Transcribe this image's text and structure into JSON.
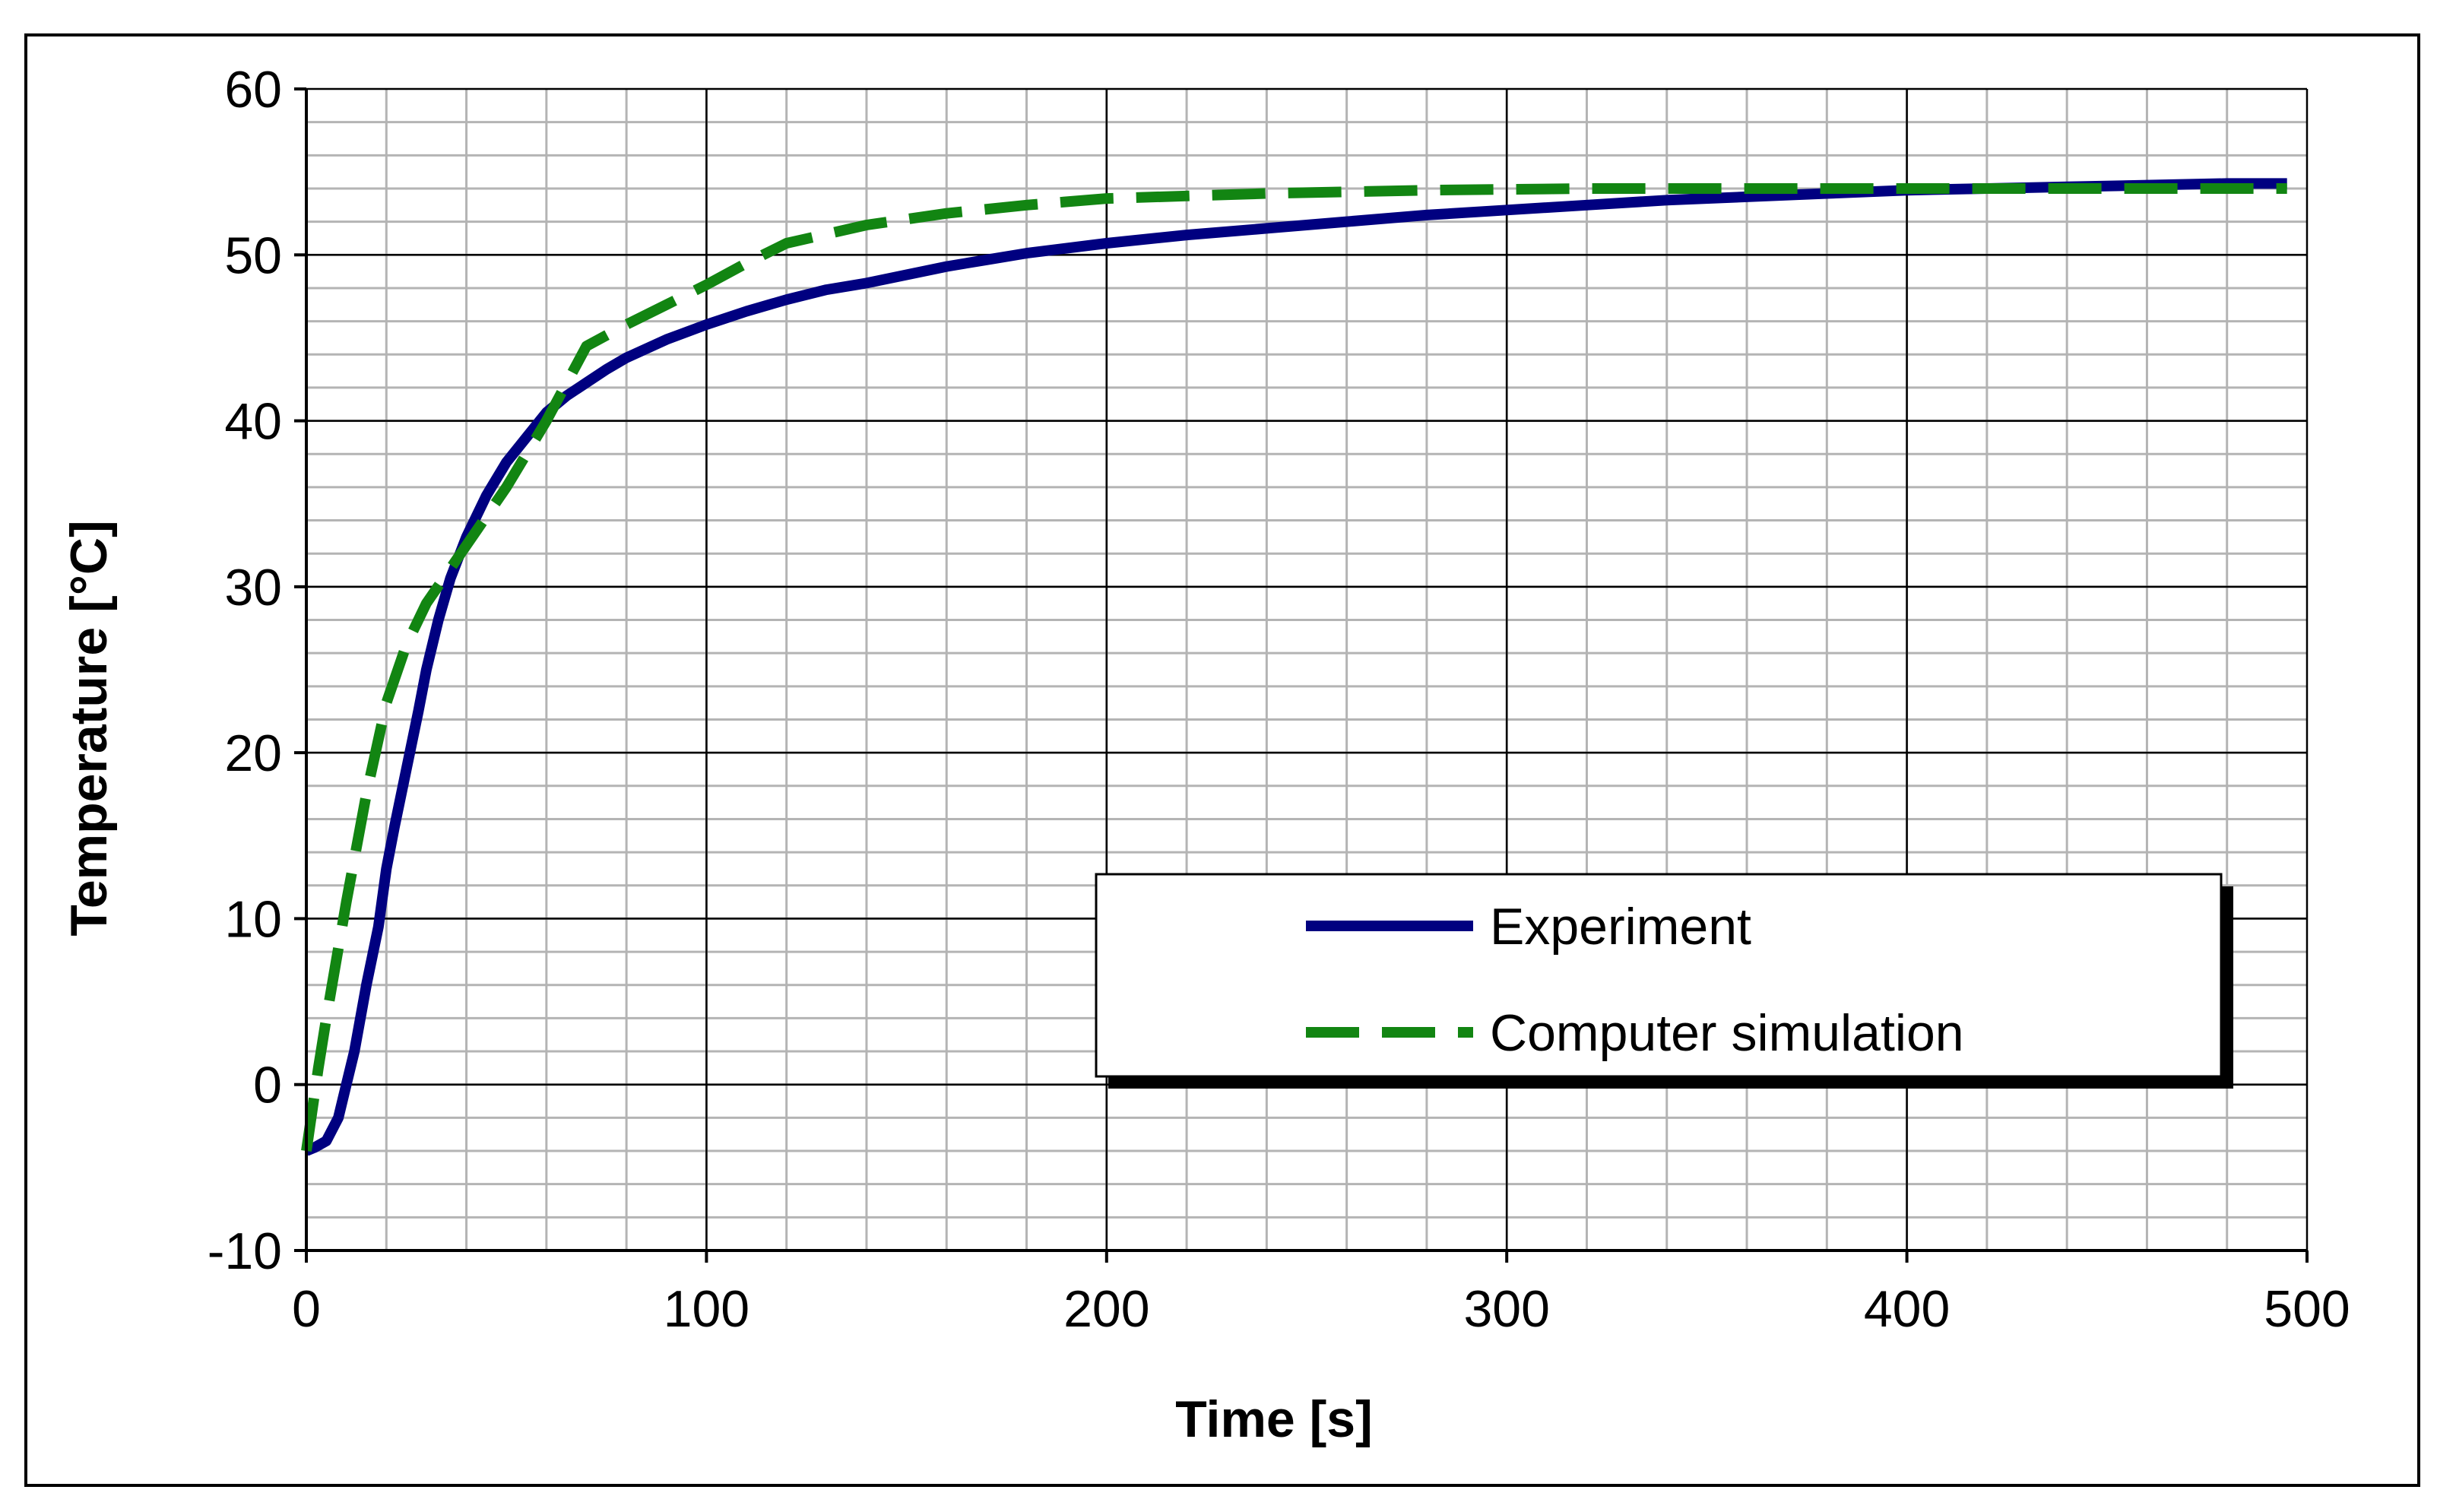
{
  "chart_data": {
    "type": "line",
    "title": "",
    "xlabel": "Time [s]",
    "ylabel": "Temperature [°C]",
    "xlim": [
      0,
      500
    ],
    "ylim": [
      -10,
      60
    ],
    "x_ticks": [
      0,
      100,
      200,
      300,
      400,
      500
    ],
    "y_ticks": [
      -10,
      0,
      10,
      20,
      30,
      40,
      50,
      60
    ],
    "x_tick_labels": [
      "0",
      "100",
      "200",
      "300",
      "400",
      "500"
    ],
    "y_tick_labels": [
      "-10",
      "0",
      "10",
      "20",
      "30",
      "40",
      "50",
      "60"
    ],
    "x_minor_step": 20,
    "y_minor_step": 2,
    "grid": true,
    "legend_position": "bottom-right",
    "series": [
      {
        "name": "Experiment",
        "color": "#000080",
        "style": "solid",
        "x": [
          0,
          2,
          5,
          8,
          10,
          12,
          15,
          18,
          20,
          22,
          25,
          28,
          30,
          33,
          36,
          40,
          45,
          50,
          55,
          60,
          65,
          70,
          75,
          80,
          90,
          100,
          110,
          120,
          130,
          140,
          150,
          160,
          170,
          180,
          200,
          220,
          240,
          260,
          280,
          300,
          320,
          340,
          360,
          380,
          400,
          420,
          440,
          460,
          480,
          495
        ],
        "values": [
          -4,
          -3.8,
          -3.4,
          -2,
          0,
          2,
          6,
          9.5,
          13,
          15.5,
          19,
          22.5,
          25,
          28,
          30.5,
          33,
          35.5,
          37.5,
          39,
          40.5,
          41.5,
          42.3,
          43.1,
          43.8,
          44.9,
          45.8,
          46.6,
          47.3,
          47.9,
          48.3,
          48.8,
          49.3,
          49.7,
          50.1,
          50.7,
          51.2,
          51.6,
          52.0,
          52.4,
          52.7,
          53.0,
          53.3,
          53.5,
          53.7,
          53.9,
          54.0,
          54.1,
          54.2,
          54.3,
          54.3
        ]
      },
      {
        "name": "Computer simulation",
        "color": "#128512",
        "style": "dashed",
        "x": [
          0,
          3,
          5,
          10,
          15,
          20,
          25,
          30,
          40,
          50,
          60,
          70,
          80,
          90,
          100,
          110,
          120,
          140,
          160,
          180,
          200,
          240,
          280,
          320,
          360,
          400,
          440,
          495
        ],
        "values": [
          -4,
          1,
          4,
          11,
          17.5,
          23,
          26.5,
          29,
          32.5,
          36,
          40,
          44.5,
          45.8,
          47,
          48.2,
          49.5,
          50.7,
          51.8,
          52.5,
          53.0,
          53.4,
          53.7,
          53.9,
          54.0,
          54.0,
          54.0,
          54.0,
          54.0
        ]
      }
    ]
  }
}
